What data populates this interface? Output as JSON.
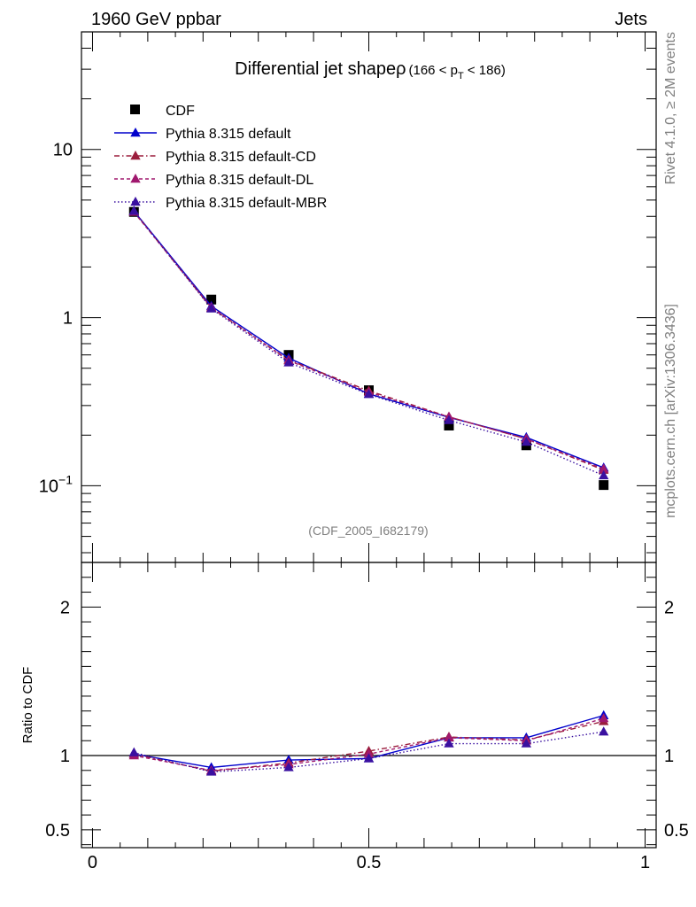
{
  "header": {
    "left": "1960 GeV ppbar",
    "right": "Jets"
  },
  "side": {
    "rivet": "Rivet 4.1.0, ≥ 2M events",
    "mcplots": "mcplots.cern.ch [arXiv:1306.3436]"
  },
  "chart_data": {
    "type": "line",
    "title": "Differential jet shapeρ",
    "title_range": "(166 < p",
    "title_sub": "T",
    "title_range_end": " < 186)",
    "analysis_tag": "(CDF_2005_I682179)",
    "upper": {
      "yscale": "log",
      "ylim": [
        0.035,
        50
      ],
      "yticks": [
        {
          "value": 10,
          "label": "10",
          "exp": ""
        },
        {
          "value": 1,
          "label": "1",
          "exp": ""
        },
        {
          "value": 0.1,
          "label": "10",
          "exp": "−1"
        }
      ]
    },
    "lower": {
      "ylabel": "Ratio to CDF",
      "ylim": [
        0.38,
        2.3
      ],
      "yticks": [
        {
          "value": 2,
          "label": "2"
        },
        {
          "value": 1,
          "label": "1"
        },
        {
          "value": 0.5,
          "label": "0.5"
        }
      ]
    },
    "xlim": [
      -0.02,
      1.02
    ],
    "xticks": [
      {
        "value": 0,
        "label": "0"
      },
      {
        "value": 0.5,
        "label": "0.5"
      },
      {
        "value": 1,
        "label": "1"
      }
    ],
    "x": [
      0.075,
      0.215,
      0.355,
      0.5,
      0.645,
      0.785,
      0.925
    ],
    "series": [
      {
        "name": "CDF",
        "color": "#000000",
        "dash": "",
        "marker": "square",
        "values": [
          4.25,
          1.28,
          0.6,
          0.37,
          0.228,
          0.174,
          0.101
        ],
        "ratio": [
          1.0,
          1.0,
          1.0,
          1.0,
          1.0,
          1.0,
          1.0
        ]
      },
      {
        "name": "Pythia 8.315 default",
        "color": "#0000cc",
        "dash": "",
        "marker": "triangle",
        "values": [
          4.3,
          1.17,
          0.575,
          0.352,
          0.255,
          0.194,
          0.128
        ],
        "ratio": [
          1.01,
          0.92,
          0.97,
          0.98,
          1.12,
          1.12,
          1.27
        ]
      },
      {
        "name": "Pythia 8.315 default-CD",
        "color": "#9b1d3c",
        "dash": "6,3,1.5,3",
        "marker": "triangle",
        "values": [
          4.27,
          1.14,
          0.56,
          0.367,
          0.257,
          0.19,
          0.124
        ],
        "ratio": [
          1.01,
          0.895,
          0.95,
          1.03,
          1.125,
          1.105,
          1.23
        ]
      },
      {
        "name": "Pythia 8.315 default-DL",
        "color": "#a0186e",
        "dash": "4,3",
        "marker": "triangle",
        "values": [
          4.24,
          1.15,
          0.555,
          0.36,
          0.257,
          0.19,
          0.126
        ],
        "ratio": [
          1.0,
          0.9,
          0.94,
          1.01,
          1.12,
          1.1,
          1.25
        ]
      },
      {
        "name": "Pythia 8.315 default-MBR",
        "color": "#3a10a0",
        "dash": "1.5,2.5",
        "marker": "triangle",
        "values": [
          4.3,
          1.13,
          0.54,
          0.35,
          0.245,
          0.182,
          0.115
        ],
        "ratio": [
          1.02,
          0.89,
          0.92,
          0.98,
          1.08,
          1.08,
          1.16
        ]
      }
    ]
  }
}
